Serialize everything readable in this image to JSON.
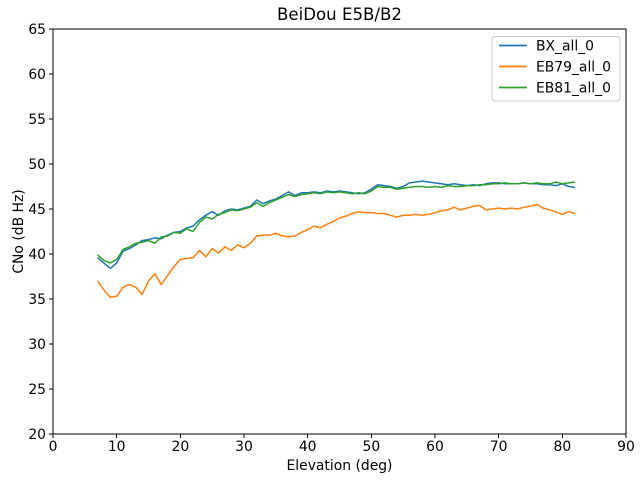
{
  "chart_data": {
    "type": "line",
    "title": "BeiDou E5B/B2",
    "xlabel": "Elevation (deg)",
    "ylabel": "CNo (dB Hz)",
    "xlim": [
      0,
      90
    ],
    "ylim": [
      20,
      65
    ],
    "xticks": [
      0,
      10,
      20,
      30,
      40,
      50,
      60,
      70,
      80,
      90
    ],
    "yticks": [
      20,
      25,
      30,
      35,
      40,
      45,
      50,
      55,
      60,
      65
    ],
    "grid": false,
    "legend_position": "upper right",
    "x": [
      7,
      8,
      9,
      10,
      11,
      12,
      13,
      14,
      15,
      16,
      17,
      18,
      19,
      20,
      21,
      22,
      23,
      24,
      25,
      26,
      27,
      28,
      29,
      30,
      31,
      32,
      33,
      34,
      35,
      36,
      37,
      38,
      39,
      40,
      41,
      42,
      43,
      44,
      45,
      46,
      47,
      48,
      49,
      50,
      51,
      52,
      53,
      54,
      55,
      56,
      57,
      58,
      59,
      60,
      61,
      62,
      63,
      64,
      65,
      66,
      67,
      68,
      69,
      70,
      71,
      72,
      73,
      74,
      75,
      76,
      77,
      78,
      79,
      80,
      81,
      82
    ],
    "series": [
      {
        "name": "BX_all_0",
        "color": "#1f77b4",
        "values": [
          39.6,
          39.0,
          38.4,
          39.0,
          40.3,
          40.6,
          41.0,
          41.5,
          41.6,
          41.8,
          41.7,
          42.1,
          42.4,
          42.5,
          42.9,
          43.1,
          43.8,
          44.3,
          44.7,
          44.3,
          44.8,
          45.0,
          44.9,
          45.1,
          45.3,
          46.0,
          45.6,
          45.9,
          46.1,
          46.5,
          46.9,
          46.5,
          46.8,
          46.8,
          46.9,
          46.8,
          47.0,
          46.9,
          47.0,
          46.9,
          46.8,
          46.7,
          46.8,
          47.2,
          47.7,
          47.6,
          47.5,
          47.3,
          47.5,
          47.9,
          48.0,
          48.1,
          48.0,
          47.9,
          47.8,
          47.7,
          47.8,
          47.7,
          47.6,
          47.7,
          47.6,
          47.8,
          47.9,
          47.9,
          47.8,
          47.8,
          47.8,
          47.9,
          47.8,
          47.8,
          47.7,
          47.7,
          47.6,
          47.8,
          47.5,
          47.4
        ]
      },
      {
        "name": "EB79_all_0",
        "color": "#ff7f0e",
        "values": [
          37.0,
          36.0,
          35.2,
          35.3,
          36.3,
          36.6,
          36.3,
          35.5,
          37.0,
          37.8,
          36.6,
          37.6,
          38.6,
          39.4,
          39.5,
          39.6,
          40.4,
          39.7,
          40.6,
          40.1,
          40.8,
          40.4,
          41.0,
          40.7,
          41.2,
          42.0,
          42.1,
          42.1,
          42.3,
          42.0,
          41.9,
          42.0,
          42.4,
          42.7,
          43.1,
          42.9,
          43.3,
          43.6,
          44.0,
          44.2,
          44.5,
          44.7,
          44.6,
          44.6,
          44.5,
          44.5,
          44.3,
          44.1,
          44.3,
          44.3,
          44.4,
          44.3,
          44.4,
          44.6,
          44.8,
          44.9,
          45.2,
          44.9,
          45.1,
          45.3,
          45.4,
          44.9,
          45.0,
          45.1,
          45.0,
          45.1,
          45.0,
          45.2,
          45.3,
          45.5,
          45.1,
          44.9,
          44.7,
          44.4,
          44.7,
          44.5
        ]
      },
      {
        "name": "EB81_all_0",
        "color": "#2ca02c",
        "values": [
          39.9,
          39.3,
          39.0,
          39.4,
          40.5,
          40.8,
          41.2,
          41.3,
          41.5,
          41.2,
          41.9,
          42.0,
          42.4,
          42.3,
          42.8,
          42.5,
          43.5,
          44.1,
          43.9,
          44.4,
          44.6,
          44.9,
          44.8,
          45.0,
          45.2,
          45.7,
          45.3,
          45.7,
          46.0,
          46.3,
          46.6,
          46.4,
          46.6,
          46.7,
          46.8,
          46.7,
          46.9,
          46.8,
          46.9,
          46.8,
          46.7,
          46.8,
          46.7,
          47.0,
          47.5,
          47.4,
          47.4,
          47.2,
          47.3,
          47.4,
          47.5,
          47.5,
          47.4,
          47.5,
          47.4,
          47.6,
          47.5,
          47.5,
          47.6,
          47.6,
          47.7,
          47.7,
          47.8,
          47.8,
          47.9,
          47.8,
          47.8,
          47.9,
          47.8,
          47.9,
          47.8,
          47.8,
          48.0,
          47.8,
          47.9,
          48.0
        ]
      }
    ]
  },
  "colors": {
    "background": "#ffffff",
    "spine": "#000000",
    "tick": "#000000",
    "legend_border": "#cccccc",
    "legend_background": "#ffffff"
  }
}
